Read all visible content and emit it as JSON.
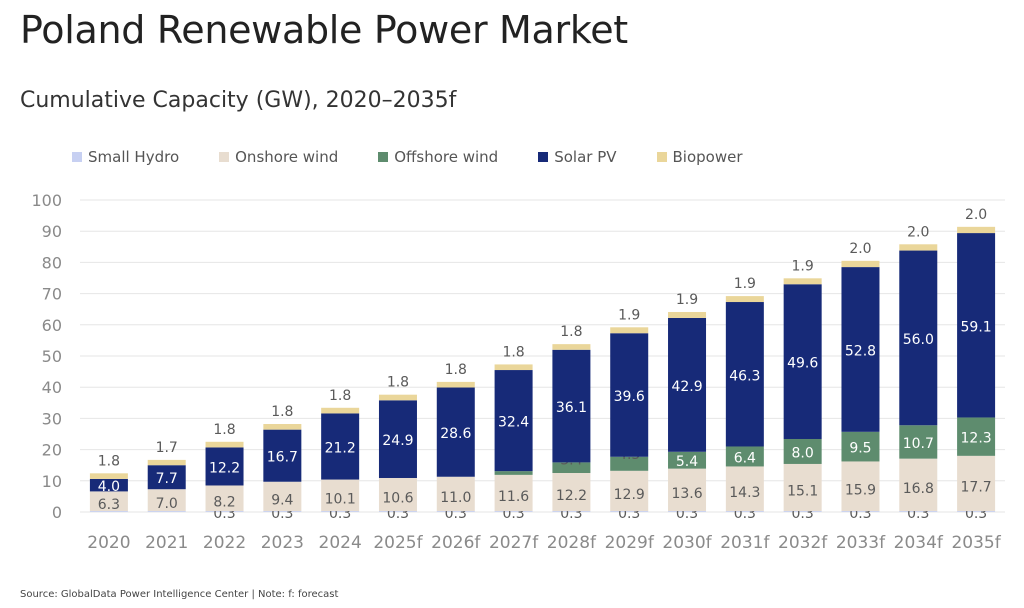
{
  "title": "Poland Renewable Power Market",
  "subtitle": "Cumulative Capacity (GW), 2020–2035f",
  "source": "Source: GlobalData Power Intelligence Center | Note: f: forecast",
  "colors": {
    "small_hydro": "#c7d0f2",
    "onshore_wind": "#e8ddd0",
    "offshore_wind": "#5e8c6e",
    "solar_pv": "#172a78",
    "biopower": "#ead69a",
    "grid": "#e6e6e6",
    "axis_text": "#8a8a8a",
    "label_dark": "#5a5a5a",
    "label_light": "#ffffff"
  },
  "chart_data": {
    "type": "bar",
    "stacked": true,
    "title": "Poland Renewable Power Market",
    "subtitle": "Cumulative Capacity (GW), 2020–2035f",
    "xlabel": "",
    "ylabel": "",
    "ylim": [
      0,
      100
    ],
    "yticks": [
      "0",
      "10",
      "20",
      "30",
      "40",
      "50",
      "60",
      "70",
      "80",
      "90",
      "100"
    ],
    "grid": true,
    "legend_position": "top-left",
    "categories": [
      "2020",
      "2021",
      "2022",
      "2023",
      "2024",
      "2025f",
      "2026f",
      "2027f",
      "2028f",
      "2029f",
      "2030f",
      "2031f",
      "2032f",
      "2033f",
      "2034f",
      "2035f"
    ],
    "series": [
      {
        "name": "Small Hydro",
        "key": "small_hydro",
        "values": [
          0.3,
          0.3,
          0.3,
          0.3,
          0.3,
          0.3,
          0.3,
          0.3,
          0.3,
          0.3,
          0.3,
          0.3,
          0.3,
          0.3,
          0.3,
          0.3
        ],
        "labels": [
          "",
          "",
          "0.3",
          "0.3",
          "0.3",
          "0.3",
          "0.3",
          "0.3",
          "0.3",
          "0.3",
          "0.3",
          "0.3",
          "0.3",
          "0.3",
          "0.3",
          "0.3"
        ]
      },
      {
        "name": "Onshore wind",
        "key": "onshore_wind",
        "values": [
          6.3,
          7.0,
          8.2,
          9.4,
          10.1,
          10.6,
          11.0,
          11.6,
          12.2,
          12.9,
          13.6,
          14.3,
          15.1,
          15.9,
          16.8,
          17.7
        ],
        "labels": [
          "6.3",
          "7.0",
          "8.2",
          "9.4",
          "10.1",
          "10.6",
          "11.0",
          "11.6",
          "12.2",
          "12.9",
          "13.6",
          "14.3",
          "15.1",
          "15.9",
          "16.8",
          "17.7"
        ]
      },
      {
        "name": "Offshore wind",
        "key": "offshore_wind",
        "values": [
          0,
          0,
          0,
          0,
          0,
          0,
          0,
          1.2,
          3.4,
          4.5,
          5.4,
          6.4,
          8.0,
          9.5,
          10.7,
          12.3
        ],
        "labels": [
          "",
          "",
          "",
          "",
          "",
          "",
          "",
          "",
          "3.4",
          "4.5",
          "5.4",
          "6.4",
          "8.0",
          "9.5",
          "10.7",
          "12.3"
        ]
      },
      {
        "name": "Solar PV",
        "key": "solar_pv",
        "values": [
          4.0,
          7.7,
          12.2,
          16.7,
          21.2,
          24.9,
          28.6,
          32.4,
          36.1,
          39.6,
          42.9,
          46.3,
          49.6,
          52.8,
          56.0,
          59.1
        ],
        "labels": [
          "4.0",
          "7.7",
          "12.2",
          "16.7",
          "21.2",
          "24.9",
          "28.6",
          "32.4",
          "36.1",
          "39.6",
          "42.9",
          "46.3",
          "49.6",
          "52.8",
          "56.0",
          "59.1"
        ]
      },
      {
        "name": "Biopower",
        "key": "biopower",
        "values": [
          1.8,
          1.7,
          1.8,
          1.8,
          1.8,
          1.8,
          1.8,
          1.8,
          1.8,
          1.9,
          1.9,
          1.9,
          1.9,
          2.0,
          2.0,
          2.0
        ],
        "labels": [
          "1.8",
          "1.7",
          "1.8",
          "1.8",
          "1.8",
          "1.8",
          "1.8",
          "1.8",
          "1.8",
          "1.9",
          "1.9",
          "1.9",
          "1.9",
          "2.0",
          "2.0",
          "2.0"
        ]
      }
    ]
  }
}
